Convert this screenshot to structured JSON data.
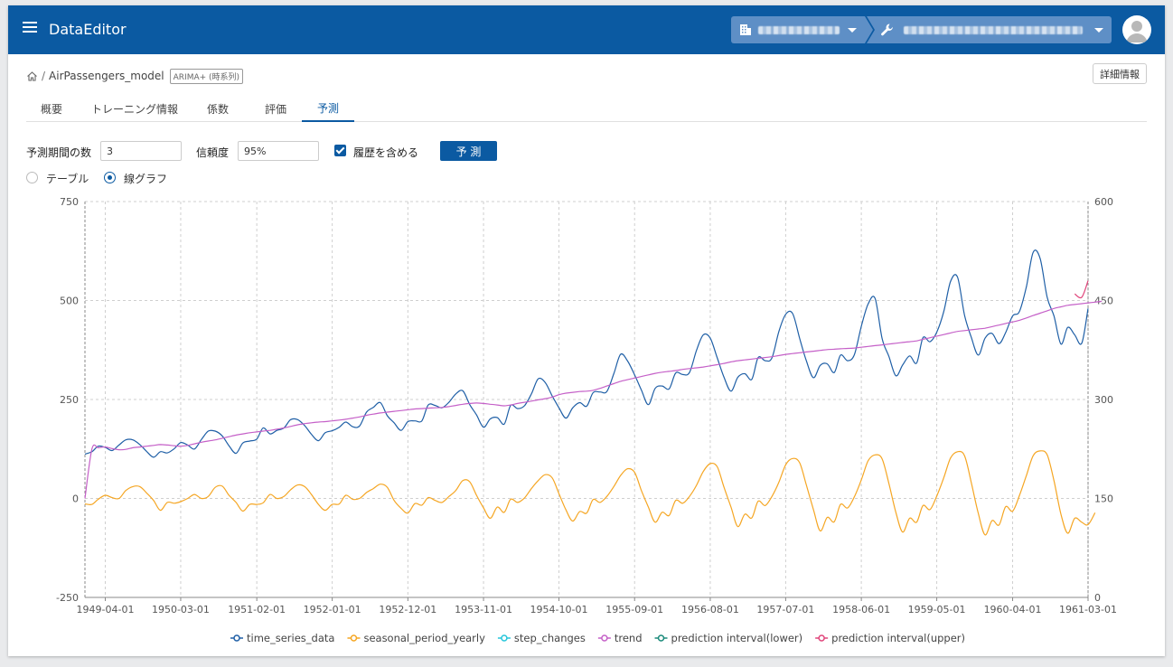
{
  "app": {
    "title": "DataEditor"
  },
  "breadcrumb": {
    "model_name": "AirPassengers_model",
    "badge": "ARIMA+ (時系列)",
    "separator": "/"
  },
  "header": {
    "detail_button": "詳細情報"
  },
  "tabs": [
    {
      "label": "概要",
      "active": false
    },
    {
      "label": "トレーニング情報",
      "active": false
    },
    {
      "label": "係数",
      "active": false
    },
    {
      "label": "評価",
      "active": false
    },
    {
      "label": "予測",
      "active": true
    }
  ],
  "form": {
    "horizon_label": "予測期間の数",
    "horizon_value": "3",
    "confidence_label": "信頼度",
    "confidence_value": "95%",
    "include_history_label": "履歴を含める",
    "include_history_checked": true,
    "predict_button": "予 測"
  },
  "view": {
    "table_label": "テーブル",
    "graph_label": "線グラフ",
    "selected": "graph"
  },
  "colors": {
    "appbar": "#0b5aa2",
    "accent": "#0b5aa2"
  },
  "chart_data": {
    "type": "line",
    "y_left": {
      "ticks": [
        "750",
        "500",
        "250",
        "0",
        "-250"
      ],
      "range": [
        -250,
        750
      ]
    },
    "y_right": {
      "ticks": [
        "600",
        "450",
        "300",
        "150",
        "0"
      ],
      "range": [
        0,
        600
      ]
    },
    "x_ticks": [
      "1949-04-01",
      "1950-03-01",
      "1951-02-01",
      "1952-01-01",
      "1952-12-01",
      "1953-11-01",
      "1954-10-01",
      "1955-09-01",
      "1956-08-01",
      "1957-07-01",
      "1958-06-01",
      "1959-05-01",
      "1960-04-01",
      "1961-03-01"
    ],
    "x_range": [
      "1949-01-01",
      "1961-03-01"
    ],
    "grid": true,
    "legend_position": "bottom",
    "series": [
      {
        "name": "time_series_data",
        "color": "#1f5fa6",
        "axis": "left",
        "values": [
          112,
          118,
          132,
          129,
          121,
          135,
          148,
          148,
          136,
          119,
          104,
          118,
          115,
          126,
          141,
          135,
          125,
          149,
          170,
          170,
          158,
          133,
          114,
          140,
          145,
          150,
          178,
          163,
          172,
          178,
          199,
          199,
          184,
          162,
          146,
          166,
          171,
          180,
          193,
          181,
          183,
          218,
          230,
          242,
          209,
          191,
          172,
          194,
          196,
          196,
          236,
          235,
          229,
          243,
          264,
          272,
          237,
          211,
          180,
          201,
          204,
          188,
          235,
          227,
          234,
          264,
          302,
          293,
          259,
          229,
          203,
          229,
          242,
          233,
          267,
          269,
          270,
          315,
          364,
          347,
          312,
          274,
          237,
          278,
          284,
          277,
          317,
          313,
          318,
          374,
          413,
          405,
          355,
          306,
          271,
          306,
          315,
          301,
          356,
          348,
          355,
          422,
          465,
          467,
          404,
          347,
          305,
          336,
          340,
          318,
          362,
          348,
          363,
          435,
          491,
          505,
          404,
          359,
          310,
          337,
          360,
          342,
          406,
          396,
          420,
          472,
          548,
          559,
          463,
          407,
          362,
          405,
          417,
          391,
          419,
          461,
          472,
          535,
          622,
          606,
          508,
          461,
          390,
          432,
          413,
          392,
          480
        ]
      },
      {
        "name": "seasonal_period_yearly",
        "color": "#f5a623",
        "axis": "left",
        "values": [
          -14,
          -15,
          -2,
          8,
          2,
          0,
          20,
          30,
          30,
          14,
          -5,
          -30,
          -10,
          -12,
          -8,
          0,
          10,
          0,
          5,
          28,
          31,
          8,
          -10,
          -32,
          -15,
          -15,
          -11,
          10,
          0,
          5,
          22,
          34,
          30,
          10,
          -15,
          -30,
          -15,
          -14,
          8,
          -2,
          0,
          15,
          25,
          36,
          28,
          -5,
          -25,
          -37,
          -13,
          -17,
          2,
          -5,
          -10,
          5,
          20,
          45,
          42,
          8,
          -24,
          -50,
          -22,
          -35,
          -2,
          -10,
          1,
          25,
          45,
          60,
          52,
          12,
          -29,
          -57,
          -33,
          -37,
          -3,
          -10,
          5,
          30,
          58,
          75,
          66,
          20,
          -22,
          -60,
          -35,
          -43,
          -5,
          -12,
          5,
          33,
          68,
          88,
          80,
          28,
          -22,
          -71,
          -40,
          -49,
          -7,
          -18,
          5,
          41,
          85,
          101,
          90,
          33,
          -28,
          -82,
          -48,
          -59,
          -15,
          -24,
          4,
          47,
          95,
          110,
          100,
          38,
          -35,
          -85,
          -50,
          -60,
          -18,
          -28,
          6,
          52,
          102,
          118,
          108,
          40,
          -38,
          -92,
          -56,
          -67,
          -21,
          -32,
          7,
          58,
          108,
          120,
          110,
          45,
          -40,
          -88,
          -50,
          -60,
          -66,
          -36
        ]
      },
      {
        "name": "step_changes",
        "color": "#26c6da",
        "axis": "left",
        "values": []
      },
      {
        "name": "trend",
        "color": "#c560c8",
        "axis": "left",
        "values": [
          0,
          125,
          128,
          130,
          126,
          123,
          124,
          128,
          130,
          132,
          134,
          136,
          135,
          133,
          132,
          134,
          138,
          142,
          145,
          148,
          152,
          156,
          160,
          163,
          166,
          168,
          170,
          172,
          175,
          178,
          182,
          186,
          189,
          191,
          193,
          194,
          196,
          198,
          200,
          203,
          206,
          210,
          213,
          216,
          218,
          220,
          222,
          224,
          226,
          227,
          228,
          229,
          230,
          232,
          235,
          238,
          240,
          241,
          240,
          238,
          236,
          234,
          236,
          240,
          243,
          246,
          249,
          252,
          256,
          262,
          266,
          268,
          270,
          271,
          273,
          278,
          284,
          290,
          296,
          300,
          304,
          308,
          312,
          316,
          319,
          321,
          323,
          326,
          328,
          330,
          332,
          335,
          338,
          341,
          345,
          348,
          350,
          352,
          354,
          356,
          358,
          361,
          364,
          366,
          368,
          370,
          372,
          374,
          376,
          377,
          378,
          379,
          380,
          382,
          384,
          386,
          388,
          390,
          392,
          394,
          396,
          398,
          402,
          406,
          410,
          414,
          418,
          422,
          424,
          426,
          428,
          430,
          434,
          438,
          442,
          446,
          450,
          456,
          462,
          468,
          474,
          480,
          484,
          488,
          490,
          492,
          494,
          496,
          498
        ]
      },
      {
        "name": "prediction interval(lower)",
        "color": "#1b8a7a",
        "axis": "right",
        "values": []
      },
      {
        "name": "prediction interval(upper)",
        "color": "#e0457b",
        "axis": "right",
        "values": [
          460,
          455,
          480
        ]
      }
    ]
  }
}
